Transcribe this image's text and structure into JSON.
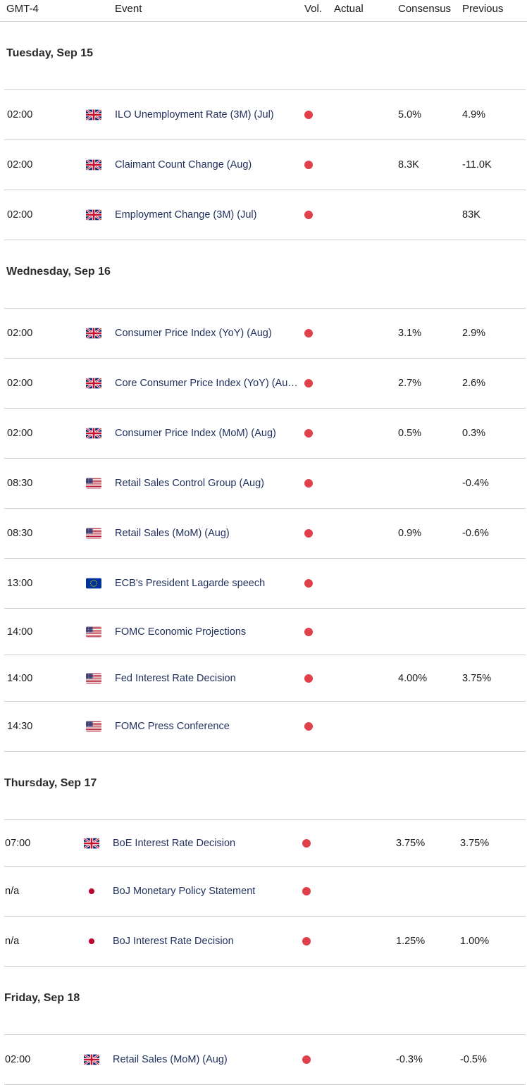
{
  "header": {
    "timezone": "GMT-4",
    "event": "Event",
    "vol": "Vol.",
    "actual": "Actual",
    "consensus": "Consensus",
    "previous": "Previous"
  },
  "colors": {
    "volatility_dot": "#e0404a",
    "event_text": "#1e2f5c",
    "row_divider": "#cfcfcf"
  },
  "days": [
    {
      "label": "Tuesday, Sep 15",
      "events": [
        {
          "time": "02:00",
          "flag": "uk-flag-icon",
          "event": "ILO Unemployment Rate (3M) (Jul)",
          "actual": "",
          "consensus": "5.0%",
          "previous": "4.9%"
        },
        {
          "time": "02:00",
          "flag": "uk-flag-icon",
          "event": "Claimant Count Change (Aug)",
          "actual": "",
          "consensus": "8.3K",
          "previous": "-11.0K"
        },
        {
          "time": "02:00",
          "flag": "uk-flag-icon",
          "event": "Employment Change (3M) (Jul)",
          "actual": "",
          "consensus": "",
          "previous": "83K"
        }
      ]
    },
    {
      "label": "Wednesday, Sep 16",
      "events": [
        {
          "time": "02:00",
          "flag": "uk-flag-icon",
          "event": "Consumer Price Index (YoY) (Aug)",
          "actual": "",
          "consensus": "3.1%",
          "previous": "2.9%"
        },
        {
          "time": "02:00",
          "flag": "uk-flag-icon",
          "event": "Core Consumer Price Index (YoY) (Au…",
          "actual": "",
          "consensus": "2.7%",
          "previous": "2.6%"
        },
        {
          "time": "02:00",
          "flag": "uk-flag-icon",
          "event": "Consumer Price Index (MoM) (Aug)",
          "actual": "",
          "consensus": "0.5%",
          "previous": "0.3%"
        },
        {
          "time": "08:30",
          "flag": "us-flag-icon",
          "event": "Retail Sales Control Group (Aug)",
          "actual": "",
          "consensus": "",
          "previous": "-0.4%"
        },
        {
          "time": "08:30",
          "flag": "us-flag-icon",
          "event": "Retail Sales (MoM) (Aug)",
          "actual": "",
          "consensus": "0.9%",
          "previous": "-0.6%"
        },
        {
          "time": "13:00",
          "flag": "eu-flag-icon",
          "event": "ECB's President Lagarde speech",
          "actual": "",
          "consensus": "",
          "previous": ""
        },
        {
          "time": "14:00",
          "flag": "us-flag-icon",
          "event": "FOMC Economic Projections",
          "actual": "",
          "consensus": "",
          "previous": ""
        },
        {
          "time": "14:00",
          "flag": "us-flag-icon",
          "event": "Fed Interest Rate Decision",
          "actual": "",
          "consensus": "4.00%",
          "previous": "3.75%"
        },
        {
          "time": "14:30",
          "flag": "us-flag-icon",
          "event": "FOMC Press Conference",
          "actual": "",
          "consensus": "",
          "previous": ""
        }
      ]
    },
    {
      "label": "Thursday, Sep 17",
      "events": [
        {
          "time": "07:00",
          "flag": "uk-flag-icon",
          "event": "BoE Interest Rate Decision",
          "actual": "",
          "consensus": "3.75%",
          "previous": "3.75%"
        },
        {
          "time": "n/a",
          "flag": "japan-flag-icon",
          "event": "BoJ Monetary Policy Statement",
          "actual": "",
          "consensus": "",
          "previous": ""
        },
        {
          "time": "n/a",
          "flag": "japan-flag-icon",
          "event": "BoJ Interest Rate Decision",
          "actual": "",
          "consensus": "1.25%",
          "previous": "1.00%"
        }
      ]
    },
    {
      "label": "Friday, Sep 18",
      "events": [
        {
          "time": "02:00",
          "flag": "uk-flag-icon",
          "event": "Retail Sales (MoM) (Aug)",
          "actual": "",
          "consensus": "-0.3%",
          "previous": "-0.5%"
        }
      ]
    }
  ]
}
